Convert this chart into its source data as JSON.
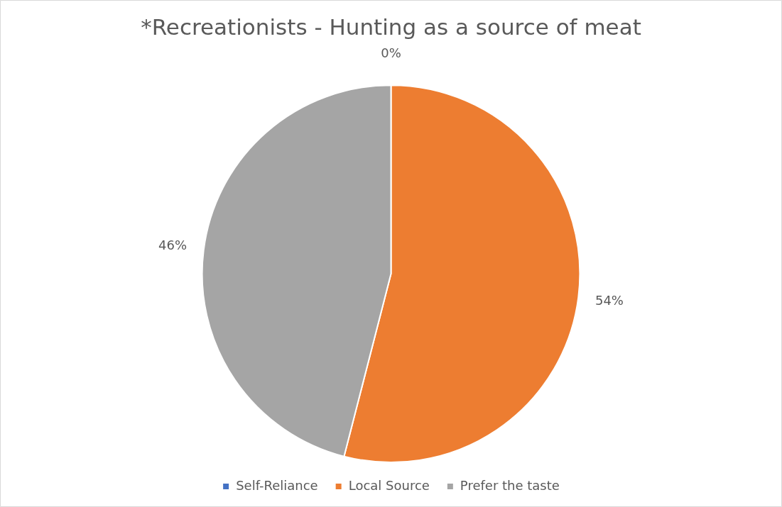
{
  "chart_data": {
    "type": "pie",
    "title": "*Recreationists - Hunting as a source of meat",
    "categories": [
      "Self-Reliance",
      "Local Source",
      "Prefer the taste"
    ],
    "values": [
      0,
      54,
      46
    ],
    "colors": [
      "#4472c4",
      "#ed7d31",
      "#a5a5a5"
    ],
    "value_labels": [
      "0%",
      "54%",
      "46%"
    ],
    "legend": "bottom"
  }
}
